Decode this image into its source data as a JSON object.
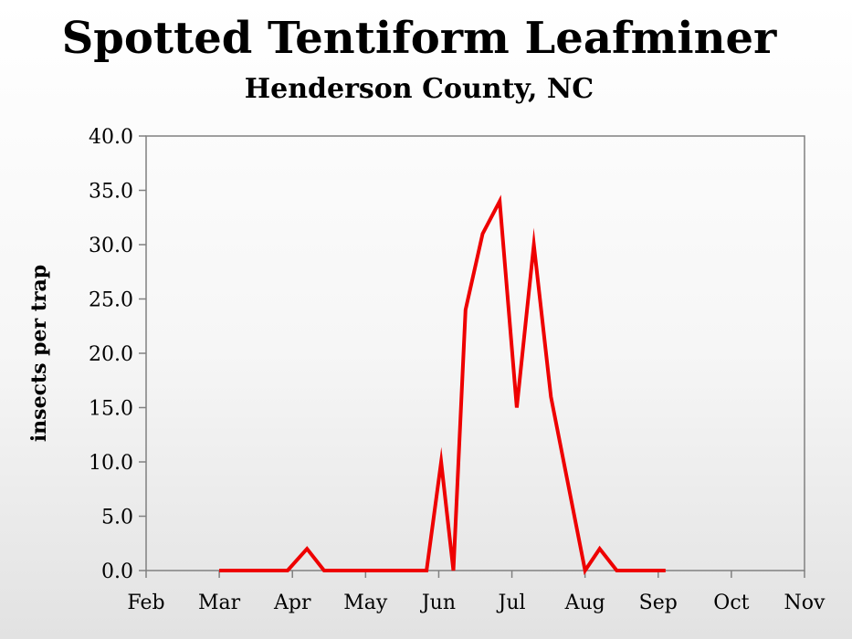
{
  "chart_data": {
    "type": "line",
    "title": "Spotted Tentiform Leafminer",
    "subtitle": "Henderson County, NC",
    "xlabel": "",
    "ylabel": "insects per trap",
    "x_tick_labels": [
      "Feb",
      "Mar",
      "Apr",
      "May",
      "Jun",
      "Jul",
      "Aug",
      "Sep",
      "Oct",
      "Nov"
    ],
    "y_tick_labels": [
      "0.0",
      "5.0",
      "10.0",
      "15.0",
      "20.0",
      "25.0",
      "30.0",
      "35.0",
      "40.0"
    ],
    "ylim": [
      0,
      40
    ],
    "x_months_range": [
      "Feb",
      "Nov"
    ],
    "grid": false,
    "legend": "none",
    "series": [
      {
        "color": "#ee0000",
        "x": [
          "Mar 01",
          "Mar 15",
          "Mar 29",
          "Apr 07",
          "Apr 14",
          "Apr 21",
          "May 05",
          "May 19",
          "May 26",
          "Jun 02",
          "Jun 07",
          "Jun 12",
          "Jun 19",
          "Jun 26",
          "Jul 03",
          "Jul 10",
          "Jul 17",
          "Jul 24",
          "Jul 31",
          "Aug 07",
          "Aug 14",
          "Aug 21",
          "Aug 28",
          "Sep 04"
        ],
        "values": [
          0,
          0,
          0,
          2,
          0,
          0,
          0,
          0,
          0,
          10,
          0,
          24,
          31,
          34,
          15,
          30,
          16,
          8,
          0,
          2,
          0,
          0,
          0,
          0
        ]
      }
    ]
  }
}
